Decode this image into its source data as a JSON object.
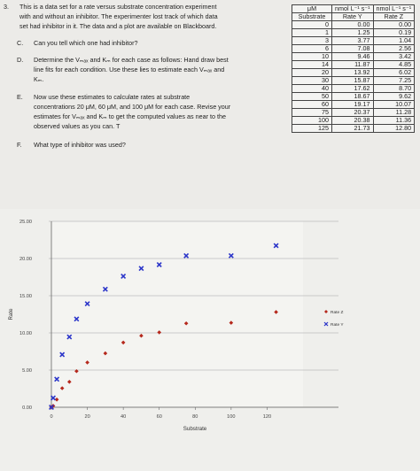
{
  "questions": {
    "q3_num": "3.",
    "q3_lines": [
      "This is a data set for a rate versus substrate concentration experiment",
      "with and without an inhibitor.  The experimenter lost track of which data",
      "set had inhibitor in it.  The data and a plot are available on Blackboard."
    ],
    "c_num": "C.",
    "c_text": "Can you tell which one had inhibitor?",
    "d_num": "D.",
    "d_lines": [
      "Determine the Vₘₐₓ and Kₘ for each case as follows:  Hand draw best",
      "line fits for each condition.  Use these lies to estimate each Vₘₐₓ and",
      "Kₘ."
    ],
    "e_num": "E.",
    "e_lines": [
      "Now use these estimates to calculate rates at substrate",
      "concentrations 20 μM, 60 μM, and 100 μM for each case.  Revise your",
      "estimates for Vₘₐₓ and Kₘ to get the computed values as near to the",
      "observed values as you can.  T"
    ],
    "f_num": "F.",
    "f_text": "What type of inhibitor was used?"
  },
  "table": {
    "units": [
      "μM",
      "nmol L⁻¹ s⁻¹",
      "nmol L⁻¹ s⁻¹"
    ],
    "headers": [
      "Substrate",
      "Rate Y",
      "Rate Z"
    ],
    "rows": [
      [
        "0",
        "0.00",
        "0.00"
      ],
      [
        "1",
        "1.25",
        "0.19"
      ],
      [
        "3",
        "3.77",
        "1.04"
      ],
      [
        "6",
        "7.08",
        "2.56"
      ],
      [
        "10",
        "9.46",
        "3.42"
      ],
      [
        "14",
        "11.87",
        "4.85"
      ],
      [
        "20",
        "13.92",
        "6.02"
      ],
      [
        "30",
        "15.87",
        "7.25"
      ],
      [
        "40",
        "17.62",
        "8.70"
      ],
      [
        "50",
        "18.67",
        "9.62"
      ],
      [
        "60",
        "19.17",
        "10.07"
      ],
      [
        "75",
        "20.37",
        "11.28"
      ],
      [
        "100",
        "20.38",
        "11.36"
      ],
      [
        "125",
        "21.73",
        "12.80"
      ]
    ]
  },
  "colors": {
    "rate_z": "#b5281c",
    "rate_y": "#2b35c9"
  },
  "chart_data": {
    "type": "scatter",
    "xlabel": "Substrate",
    "ylabel": "Rate",
    "xlim": [
      0,
      140
    ],
    "ylim": [
      0,
      25
    ],
    "x_ticks": [
      "0",
      "20",
      "40",
      "60",
      "80",
      "100",
      "120"
    ],
    "y_ticks": [
      "0.00",
      "5.00",
      "10.00",
      "15.00",
      "20.00",
      "25.00"
    ],
    "x": [
      0,
      1,
      3,
      6,
      10,
      14,
      20,
      30,
      40,
      50,
      60,
      75,
      100,
      125
    ],
    "series": [
      {
        "name": "Rate Z",
        "marker": "diamond",
        "values": [
          0.0,
          0.19,
          1.04,
          2.56,
          3.42,
          4.85,
          6.02,
          7.25,
          8.7,
          9.62,
          10.07,
          11.28,
          11.36,
          12.8
        ]
      },
      {
        "name": "Rate Y",
        "marker": "x",
        "values": [
          0.0,
          1.25,
          3.77,
          7.08,
          9.46,
          11.87,
          13.92,
          15.87,
          17.62,
          18.67,
          19.17,
          20.37,
          20.38,
          21.73
        ]
      }
    ],
    "legend_position": "right",
    "grid": true
  }
}
